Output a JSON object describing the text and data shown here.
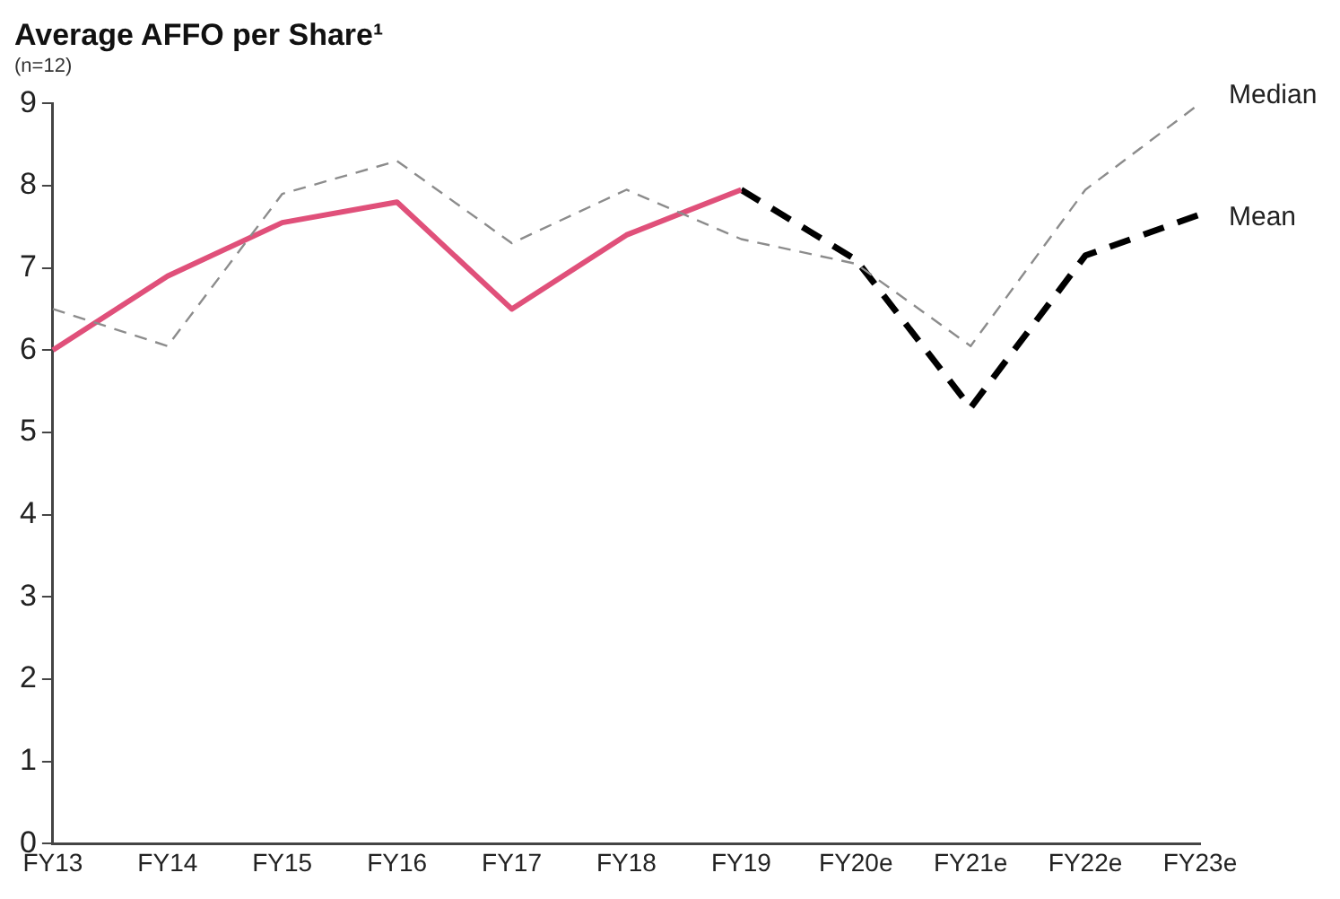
{
  "chart_data": {
    "type": "line",
    "title": "Average AFFO per Share¹",
    "subtitle": "(n=12)",
    "categories": [
      "FY13",
      "FY14",
      "FY15",
      "FY16",
      "FY17",
      "FY18",
      "FY19",
      "FY20e",
      "FY21e",
      "FY22e",
      "FY23e"
    ],
    "series": [
      {
        "name": "Median",
        "color": "#8c8c8c",
        "line_style": "dashed",
        "values": [
          6.5,
          6.05,
          7.9,
          8.3,
          7.3,
          7.95,
          7.35,
          7.05,
          6.05,
          7.95,
          9.0
        ]
      },
      {
        "color": "#e0507a",
        "line_style": "solid",
        "values": [
          6.0,
          6.9,
          7.55,
          7.8,
          6.5,
          7.4,
          7.95,
          null,
          null,
          null,
          null
        ]
      },
      {
        "name": "Mean",
        "color": "#000000",
        "line_style": "dashed",
        "values": [
          null,
          null,
          null,
          null,
          null,
          null,
          7.95,
          7.1,
          5.3,
          7.15,
          7.65
        ]
      }
    ],
    "ylim": [
      0,
      9
    ],
    "yticks": [
      0,
      1,
      2,
      3,
      4,
      5,
      6,
      7,
      8,
      9
    ],
    "grid": false,
    "legend": false,
    "marker": "none"
  }
}
